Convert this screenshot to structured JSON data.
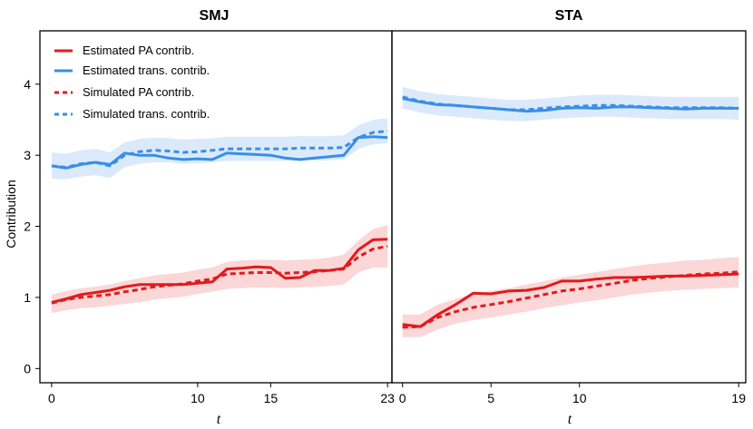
{
  "chart_data": {
    "type": "line",
    "ylabel": "Contribution",
    "xlabel": "t",
    "ylim": [
      -0.2,
      4.75
    ],
    "yticks": [
      0,
      1,
      2,
      3,
      4
    ],
    "colors": {
      "pa": "#e31a1c",
      "trans": "#3a8ee6",
      "pa_band": "#fbd7d7",
      "trans_band": "#dbeafa"
    },
    "legend": {
      "position": "top-left",
      "entries": [
        {
          "label": "Estimated PA contrib.",
          "series": "est_pa",
          "style": "solid"
        },
        {
          "label": "Estimated trans. contrib.",
          "series": "est_trans",
          "style": "solid"
        },
        {
          "label": "Simulated PA contrib.",
          "series": "sim_pa",
          "style": "dashed"
        },
        {
          "label": "Simulated trans. contrib.",
          "series": "sim_trans",
          "style": "dashed"
        }
      ]
    },
    "panels": [
      {
        "title": "SMJ",
        "xlim": [
          -0.8,
          23.3
        ],
        "xticks": [
          0,
          10,
          15,
          23
        ],
        "x": [
          0,
          1,
          2,
          3,
          4,
          5,
          6,
          7,
          8,
          9,
          10,
          11,
          12,
          13,
          14,
          15,
          16,
          17,
          18,
          19,
          20,
          21,
          22,
          23
        ],
        "series": {
          "est_pa": [
            0.93,
            0.98,
            1.04,
            1.07,
            1.1,
            1.15,
            1.18,
            1.18,
            1.18,
            1.18,
            1.2,
            1.22,
            1.4,
            1.41,
            1.43,
            1.42,
            1.27,
            1.28,
            1.38,
            1.38,
            1.41,
            1.67,
            1.81,
            1.82
          ],
          "sim_pa": [
            0.92,
            0.97,
            1.0,
            1.02,
            1.04,
            1.08,
            1.11,
            1.15,
            1.17,
            1.19,
            1.23,
            1.26,
            1.33,
            1.34,
            1.35,
            1.35,
            1.34,
            1.35,
            1.36,
            1.38,
            1.4,
            1.57,
            1.68,
            1.72
          ],
          "est_trans": [
            2.85,
            2.82,
            2.87,
            2.9,
            2.87,
            3.03,
            3.0,
            3.0,
            2.96,
            2.94,
            2.95,
            2.94,
            3.03,
            3.02,
            3.01,
            3.0,
            2.96,
            2.94,
            2.96,
            2.98,
            3.0,
            3.25,
            3.26,
            3.25
          ],
          "sim_trans": [
            2.85,
            2.83,
            2.88,
            2.9,
            2.85,
            3.0,
            3.05,
            3.07,
            3.06,
            3.04,
            3.05,
            3.07,
            3.09,
            3.09,
            3.09,
            3.09,
            3.09,
            3.1,
            3.1,
            3.1,
            3.11,
            3.25,
            3.32,
            3.34
          ],
          "pa_lo": [
            0.78,
            0.82,
            0.85,
            0.86,
            0.88,
            0.91,
            0.93,
            0.97,
            0.99,
            1.01,
            1.05,
            1.08,
            1.12,
            1.13,
            1.14,
            1.14,
            1.13,
            1.14,
            1.15,
            1.16,
            1.18,
            1.35,
            1.42,
            1.42
          ],
          "pa_hi": [
            1.04,
            1.09,
            1.13,
            1.15,
            1.18,
            1.23,
            1.27,
            1.31,
            1.33,
            1.35,
            1.39,
            1.42,
            1.5,
            1.52,
            1.53,
            1.53,
            1.52,
            1.53,
            1.54,
            1.56,
            1.6,
            1.8,
            1.96,
            2.02
          ],
          "trans_lo": [
            2.67,
            2.66,
            2.7,
            2.72,
            2.68,
            2.83,
            2.88,
            2.9,
            2.9,
            2.88,
            2.89,
            2.9,
            2.92,
            2.92,
            2.92,
            2.92,
            2.92,
            2.93,
            2.93,
            2.93,
            2.94,
            3.09,
            3.15,
            3.17
          ],
          "trans_hi": [
            3.04,
            3.02,
            3.07,
            3.09,
            3.04,
            3.18,
            3.23,
            3.25,
            3.24,
            3.22,
            3.23,
            3.24,
            3.26,
            3.26,
            3.26,
            3.26,
            3.26,
            3.27,
            3.27,
            3.27,
            3.28,
            3.42,
            3.5,
            3.52
          ]
        }
      },
      {
        "title": "STA",
        "xlim": [
          -0.6,
          19.4
        ],
        "xticks": [
          0,
          5,
          10,
          19
        ],
        "x": [
          0,
          1,
          2,
          3,
          4,
          5,
          6,
          7,
          8,
          9,
          10,
          11,
          12,
          13,
          14,
          15,
          16,
          17,
          18,
          19
        ],
        "series": {
          "est_pa": [
            0.62,
            0.59,
            0.76,
            0.9,
            1.06,
            1.05,
            1.09,
            1.1,
            1.14,
            1.23,
            1.23,
            1.26,
            1.28,
            1.28,
            1.29,
            1.3,
            1.3,
            1.31,
            1.32,
            1.33
          ],
          "sim_pa": [
            0.58,
            0.59,
            0.72,
            0.8,
            0.86,
            0.9,
            0.94,
            0.99,
            1.04,
            1.09,
            1.12,
            1.16,
            1.2,
            1.24,
            1.27,
            1.29,
            1.31,
            1.33,
            1.34,
            1.36
          ],
          "est_trans": [
            3.8,
            3.75,
            3.71,
            3.7,
            3.68,
            3.66,
            3.64,
            3.62,
            3.63,
            3.66,
            3.67,
            3.66,
            3.68,
            3.68,
            3.67,
            3.66,
            3.65,
            3.66,
            3.66,
            3.66
          ],
          "sim_trans": [
            3.82,
            3.76,
            3.72,
            3.7,
            3.68,
            3.66,
            3.64,
            3.64,
            3.66,
            3.68,
            3.69,
            3.7,
            3.7,
            3.69,
            3.68,
            3.67,
            3.67,
            3.67,
            3.67,
            3.66
          ],
          "pa_lo": [
            0.44,
            0.44,
            0.55,
            0.63,
            0.68,
            0.72,
            0.76,
            0.8,
            0.85,
            0.89,
            0.93,
            0.96,
            1.0,
            1.04,
            1.07,
            1.09,
            1.11,
            1.12,
            1.13,
            1.14
          ],
          "pa_hi": [
            0.76,
            0.76,
            0.9,
            0.98,
            1.05,
            1.09,
            1.13,
            1.18,
            1.23,
            1.28,
            1.32,
            1.36,
            1.4,
            1.44,
            1.47,
            1.49,
            1.52,
            1.53,
            1.55,
            1.57
          ],
          "trans_lo": [
            3.66,
            3.6,
            3.56,
            3.54,
            3.52,
            3.5,
            3.48,
            3.48,
            3.5,
            3.52,
            3.53,
            3.54,
            3.54,
            3.53,
            3.52,
            3.51,
            3.51,
            3.51,
            3.51,
            3.5
          ],
          "trans_hi": [
            3.96,
            3.9,
            3.86,
            3.84,
            3.82,
            3.8,
            3.78,
            3.78,
            3.8,
            3.82,
            3.84,
            3.85,
            3.85,
            3.84,
            3.83,
            3.82,
            3.82,
            3.82,
            3.82,
            3.82
          ]
        }
      }
    ]
  }
}
